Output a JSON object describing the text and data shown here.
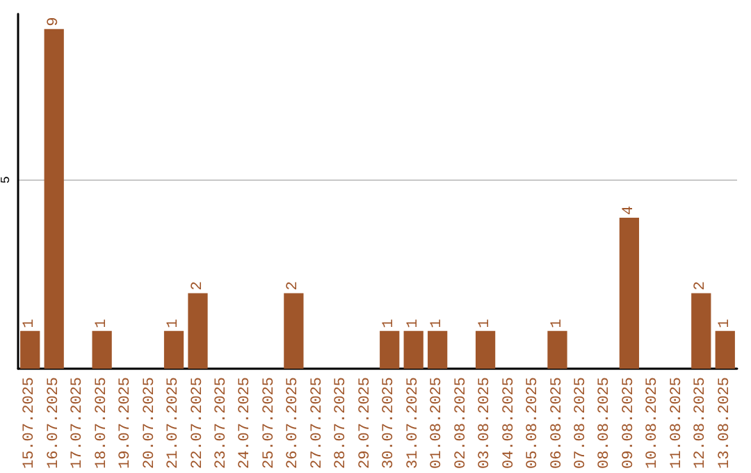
{
  "chart_data": {
    "type": "bar",
    "categories": [
      "15.07.2025",
      "16.07.2025",
      "17.07.2025",
      "18.07.2025",
      "19.07.2025",
      "20.07.2025",
      "21.07.2025",
      "22.07.2025",
      "23.07.2025",
      "24.07.2025",
      "25.07.2025",
      "26.07.2025",
      "27.07.2025",
      "28.07.2025",
      "29.07.2025",
      "30.07.2025",
      "31.07.2025",
      "01.08.2025",
      "02.08.2025",
      "03.08.2025",
      "04.08.2025",
      "05.08.2025",
      "06.08.2025",
      "07.08.2025",
      "08.08.2025",
      "09.08.2025",
      "10.08.2025",
      "11.08.2025",
      "12.08.2025",
      "13.08.2025"
    ],
    "values": [
      1,
      9,
      0,
      1,
      0,
      0,
      1,
      2,
      0,
      0,
      0,
      2,
      0,
      0,
      0,
      1,
      1,
      1,
      0,
      1,
      0,
      0,
      1,
      0,
      0,
      4,
      0,
      0,
      2,
      1
    ],
    "value_labels": [
      "1",
      "9",
      null,
      "1",
      null,
      null,
      "1",
      "2",
      null,
      null,
      null,
      "2",
      null,
      null,
      null,
      "1",
      "1",
      "1",
      null,
      "1",
      null,
      null,
      "1",
      null,
      null,
      "4",
      null,
      null,
      "2",
      "1"
    ],
    "color": "#a0562a",
    "ylim": [
      0,
      9.4
    ],
    "yticks": [
      {
        "value": 0,
        "label": null
      },
      5
    ],
    "grid": "y"
  }
}
